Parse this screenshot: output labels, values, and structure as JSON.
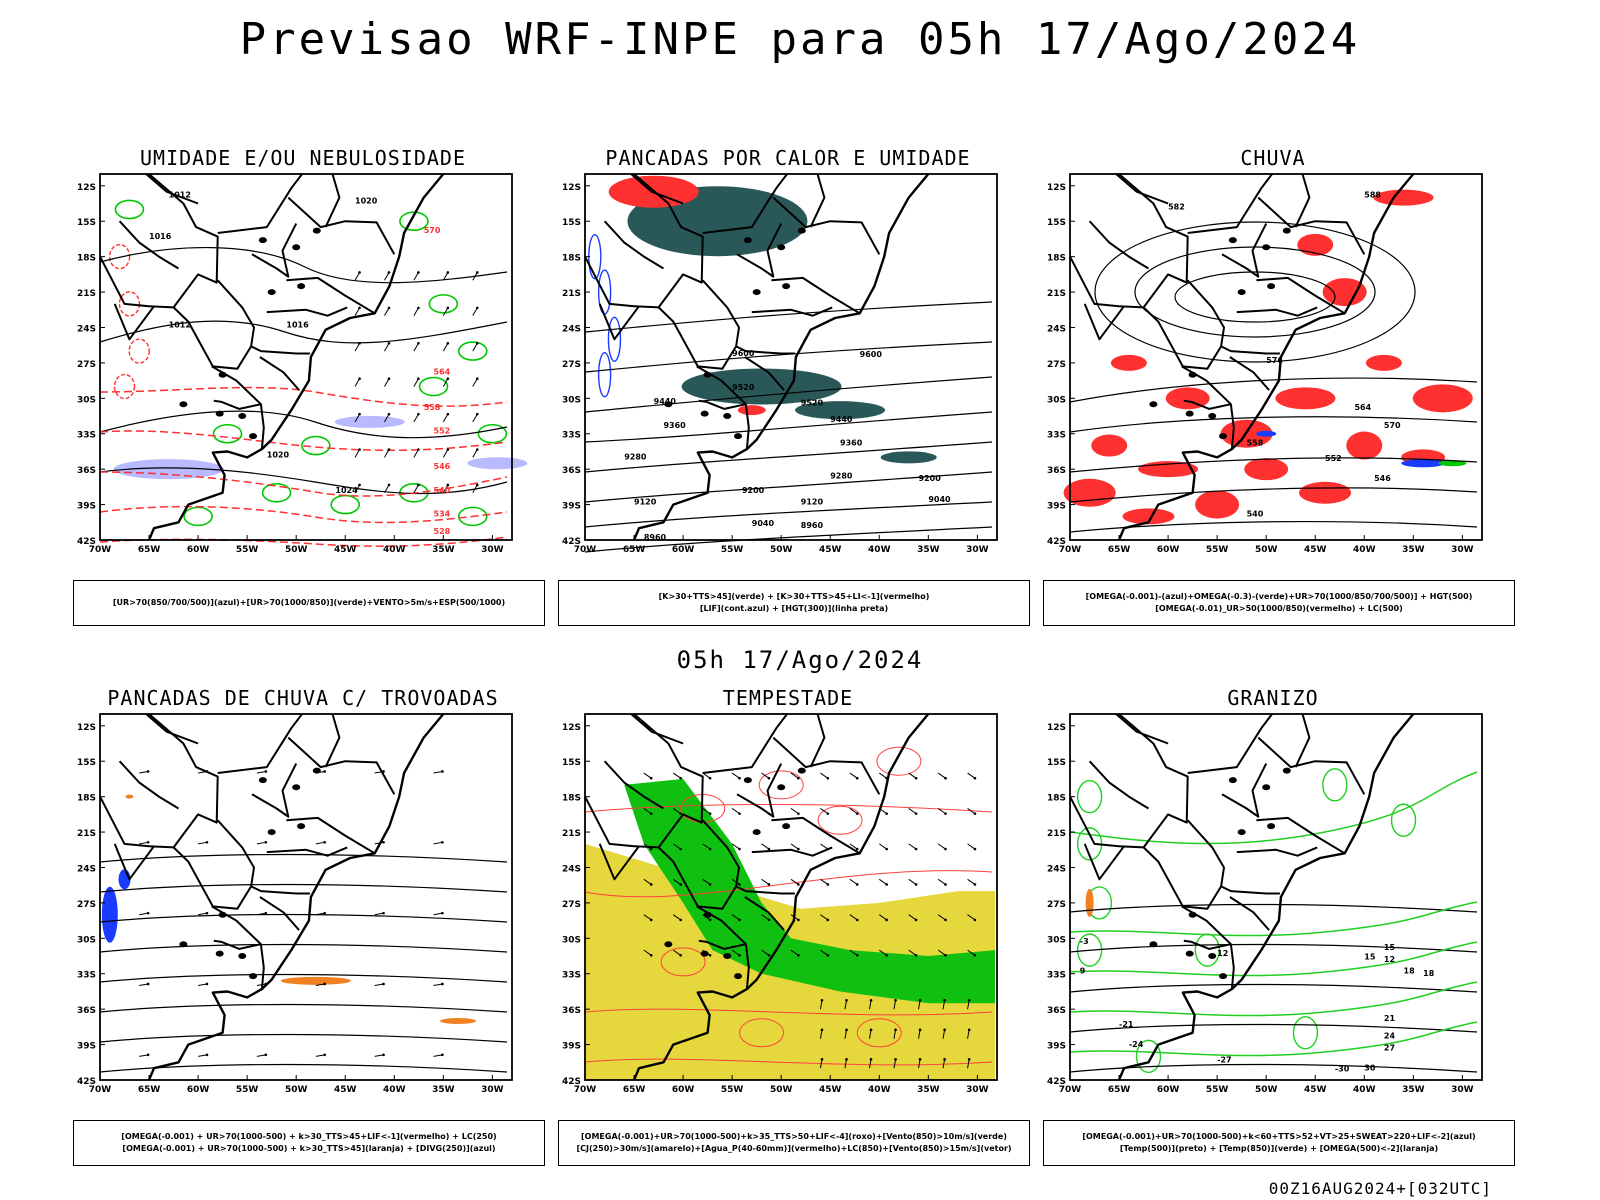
{
  "main_title": "Previsao WRF-INPE  para 05h 17/Ago/2024",
  "middle_date": "05h 17/Ago/2024",
  "footer": "00Z16AUG2024+[032UTC]",
  "axes": {
    "lat_labels": [
      "12S",
      "15S",
      "18S",
      "21S",
      "24S",
      "27S",
      "30S",
      "33S",
      "36S",
      "39S",
      "42S"
    ],
    "lon_labels": [
      "70W",
      "65W",
      "60W",
      "55W",
      "50W",
      "45W",
      "40W",
      "35W",
      "30W"
    ]
  },
  "panels": [
    {
      "title": "UMIDADE E/OU NEBULOSIDADE",
      "legend": [
        "[UR>70(850/700/500)](azul)+[UR>70(1000/850)](verde)+VENTO>5m/s+ESP(500/1000)"
      ],
      "contour_labels": [
        "1012",
        "1016",
        "1020",
        "1024",
        "1012",
        "1016",
        "1020",
        "570",
        "564",
        "558",
        "552",
        "546",
        "540",
        "534",
        "528"
      ],
      "colors": {
        "blue": "#a8a8ff",
        "green": "#00c800",
        "red": "#ff3030"
      }
    },
    {
      "title": "PANCADAS POR CALOR E UMIDADE",
      "legend": [
        "[K>30+TTS>45](verde) + [K>30+TTS>45+LI<-1](vermelho)",
        "[LIF](cont.azul) + [HGT(300)](linha preta)"
      ],
      "contour_labels": [
        "9600",
        "9520",
        "9440",
        "9360",
        "9280",
        "9200",
        "9120",
        "9040",
        "8960",
        "9600",
        "9520",
        "9440",
        "9360",
        "9280",
        "9200",
        "9120",
        "9040",
        "8960"
      ],
      "colors": {
        "teal": "#2a5858",
        "red": "#ff3030",
        "blue": "#1a3cff"
      }
    },
    {
      "title": "CHUVA",
      "legend": [
        "[OMEGA(-0.001)-(azul)+OMEGA(-0.3)-(verde)+UR>70(1000/850/700/500)] + HGT(500)",
        "[OMEGA(-0.01)_UR>50(1000/850)(vermelho) + LC(500)"
      ],
      "contour_labels": [
        "588",
        "582",
        "576",
        "570",
        "564",
        "558",
        "552",
        "546",
        "540"
      ],
      "colors": {
        "red": "#ff3030",
        "blue": "#1a3cff",
        "green": "#00c800"
      }
    },
    {
      "title": "PANCADAS DE CHUVA C/ TROVOADAS",
      "legend": [
        "[OMEGA(-0.001) + UR>70(1000-500) + k>30_TTS>45+LIF<-1](vermelho) + LC(250)",
        "[OMEGA(-0.001) + UR>70(1000-500) + k>30_TTS>45](laranja) + [DIVG(250)](azul)"
      ],
      "colors": {
        "blue": "#1a3cff",
        "orange": "#f08020"
      }
    },
    {
      "title": "TEMPESTADE",
      "legend": [
        "[OMEGA(-0.001)+UR>70(1000-500)+k>35_TTS>50+LIF<-4](roxo)+[Vento(850)>10m/s](verde)",
        "[CJ(250)>30m/s](amarelo)+[Agua_P(40-60mm)](vermelho)+LC(850)+[Vento(850)>15m/s](vetor)"
      ],
      "colors": {
        "yellow": "#e6d83c",
        "green": "#10c010",
        "red": "#ff4040"
      }
    },
    {
      "title": "GRANIZO",
      "legend": [
        "[OMEGA(-0.001)+UR>70(1000-500)+k<60+TTS>52+VT>25+SWEAT>220+LIF<-2](azul)",
        "[Temp(500)](preto) + [Temp(850)](verde) + [OMEGA(500)<-2](laranja)"
      ],
      "contour_labels": [
        "-3",
        "9",
        "12",
        "15",
        "18",
        "-21",
        "-24",
        "-27",
        "-30",
        "12",
        "15",
        "18",
        "21",
        "24",
        "27",
        "30"
      ],
      "colors": {
        "green": "#20d020",
        "orange": "#f08020"
      }
    }
  ]
}
